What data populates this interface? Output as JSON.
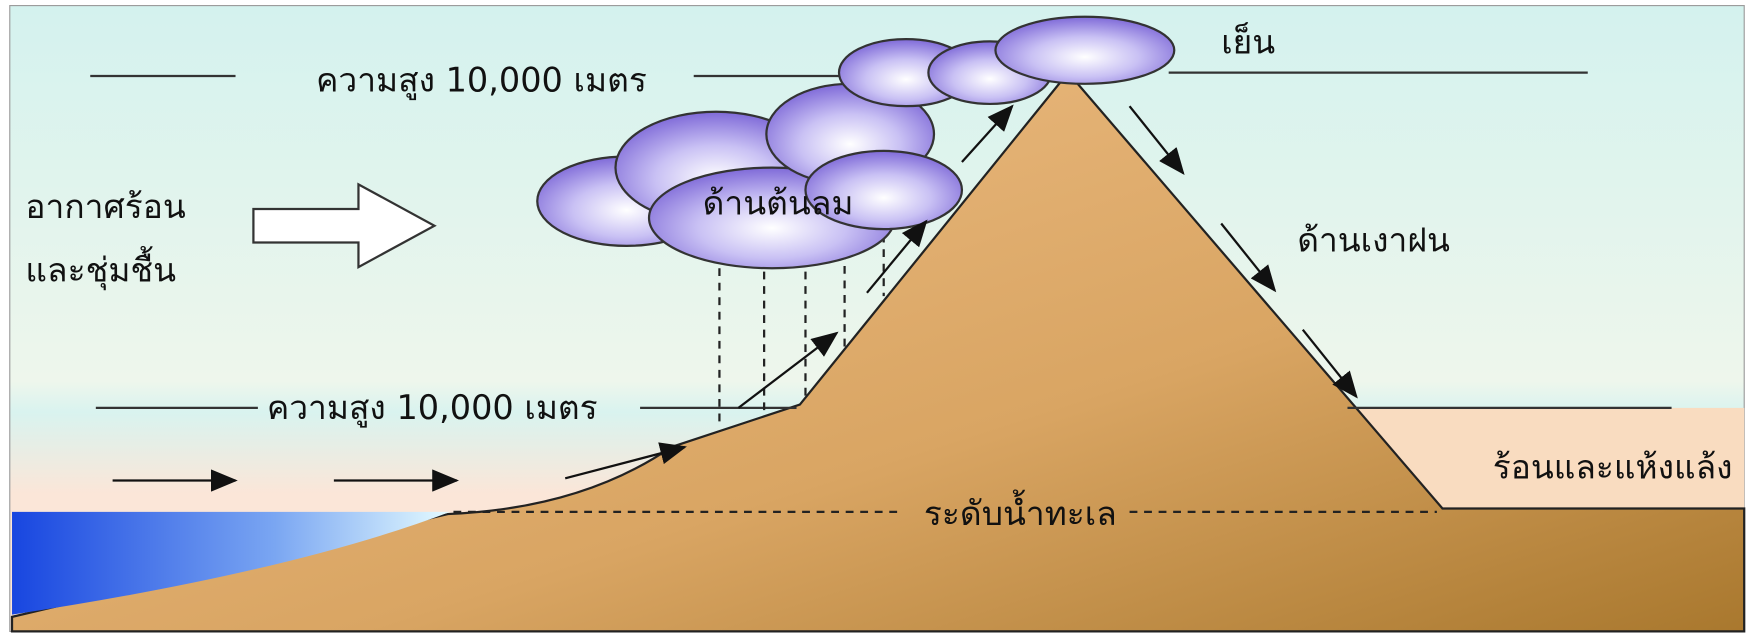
{
  "labels": {
    "top_altitude": "ความสูง 10,000 เมตร",
    "cool": "เย็น",
    "hot_humid_1": "อากาศร้อน",
    "hot_humid_2": "และชุ่มชื้น",
    "windward": "ด้านต้นลม",
    "leeward": "ด้านเงาฝน",
    "low_altitude": "ความสูง 10,000 เมตร",
    "hot_dry": "ร้อนและแห้งแล้ง",
    "sea_level": "ระดับน้ำทะเล"
  }
}
